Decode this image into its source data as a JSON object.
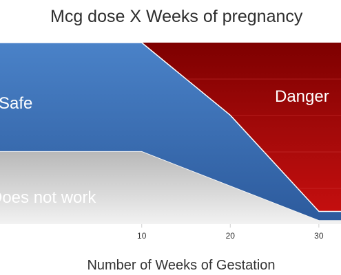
{
  "chart_data": {
    "type": "area",
    "title": "Mcg dose X Weeks of pregnancy",
    "xlabel": "Number of Weeks of Gestation",
    "ylabel": "",
    "x_tick_labels": [
      "10",
      "20",
      "30"
    ],
    "xlim": [
      -6,
      32.5
    ],
    "ylim": [
      0,
      1
    ],
    "grid": false,
    "legend": "none",
    "regions": [
      {
        "label": "Does not work",
        "color": "#d4d4d4",
        "points": [
          [
            -6,
            0.4
          ],
          [
            10,
            0.4
          ],
          [
            20,
            0.21
          ],
          [
            30,
            0.02
          ],
          [
            32.5,
            0.02
          ]
        ]
      },
      {
        "label": "Safe",
        "color": "#3a6fb8",
        "points": [
          [
            -6,
            1.0
          ],
          [
            10,
            1.0
          ],
          [
            20,
            0.6
          ],
          [
            30,
            0.07
          ],
          [
            32.5,
            0.07
          ]
        ]
      },
      {
        "label": "Danger",
        "color": "#b50d0d",
        "points": [
          [
            -6,
            1.0
          ],
          [
            32.5,
            1.0
          ]
        ]
      }
    ]
  }
}
